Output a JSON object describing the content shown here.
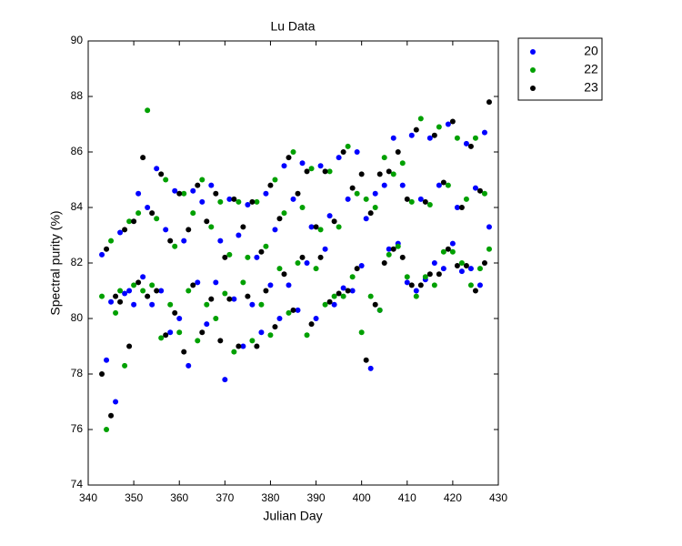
{
  "chart_data": {
    "type": "scatter",
    "title": "Lu Data",
    "x_label": "Julian Day",
    "y_label": "Spectral purity (%)",
    "x": [
      343,
      344,
      345,
      346,
      347,
      348,
      349,
      350,
      351,
      352,
      353,
      354,
      355,
      356,
      357,
      358,
      359,
      360,
      361,
      362,
      363,
      364,
      365,
      366,
      367,
      368,
      369,
      370,
      371,
      372,
      373,
      374,
      375,
      376,
      377,
      378,
      379,
      380,
      381,
      382,
      383,
      384,
      385,
      386,
      387,
      388,
      389,
      390,
      391,
      392,
      393,
      394,
      395,
      396,
      397,
      398,
      399,
      400,
      401,
      402,
      403,
      404,
      405,
      406,
      407,
      408,
      409,
      410,
      411,
      412,
      413,
      414,
      415,
      416,
      417,
      418,
      419,
      420,
      421,
      422,
      423,
      424,
      425,
      426,
      427,
      428
    ],
    "series": [
      {
        "name": "20",
        "color": "#0000ff",
        "values": [
          82.3,
          78.5,
          80.6,
          77.0,
          83.1,
          80.9,
          81.0,
          80.5,
          84.5,
          81.5,
          84.0,
          80.5,
          85.4,
          81.0,
          83.2,
          79.5,
          84.6,
          80.0,
          82.8,
          78.3,
          84.6,
          81.3,
          84.2,
          79.8,
          84.8,
          81.3,
          82.8,
          77.8,
          84.3,
          80.7,
          83.0,
          79.0,
          84.1,
          80.5,
          82.2,
          79.5,
          84.5,
          81.2,
          83.2,
          80.0,
          85.5,
          81.2,
          84.3,
          80.3,
          85.6,
          82.0,
          83.3,
          80.0,
          85.5,
          82.5,
          83.7,
          80.5,
          85.8,
          81.1,
          84.3,
          81.0,
          86.0,
          81.9,
          83.6,
          78.2,
          84.5,
          80.3,
          84.8,
          82.5,
          86.5,
          82.7,
          84.8,
          81.3,
          86.6,
          81.0,
          84.3,
          81.4,
          86.5,
          82.0,
          84.8,
          81.8,
          87.0,
          82.7,
          84.0,
          81.7,
          86.3,
          81.8,
          84.7,
          81.2,
          86.7,
          83.3
        ]
      },
      {
        "name": "22",
        "color": "#00a000",
        "values": [
          80.8,
          76.0,
          82.8,
          80.2,
          81.0,
          78.3,
          83.5,
          81.2,
          83.8,
          81.0,
          87.5,
          81.2,
          83.6,
          79.3,
          85.0,
          80.5,
          82.6,
          79.5,
          84.5,
          81.0,
          83.8,
          79.2,
          85.0,
          80.5,
          83.3,
          80.0,
          84.2,
          80.9,
          82.3,
          78.8,
          84.2,
          81.3,
          82.2,
          79.2,
          84.2,
          80.5,
          82.6,
          79.4,
          85.0,
          81.8,
          83.8,
          80.2,
          86.0,
          82.0,
          84.0,
          79.4,
          85.4,
          81.8,
          83.2,
          80.5,
          85.3,
          80.8,
          83.3,
          80.8,
          86.2,
          81.5,
          84.5,
          79.5,
          84.3,
          80.8,
          84.0,
          80.3,
          85.8,
          82.3,
          85.2,
          82.6,
          85.6,
          81.5,
          84.2,
          80.8,
          87.2,
          81.5,
          84.1,
          81.2,
          86.9,
          82.4,
          84.8,
          82.4,
          86.5,
          82.0,
          84.3,
          81.2,
          86.5,
          81.8,
          84.5,
          82.5
        ]
      },
      {
        "name": "23",
        "color": "#000000",
        "values": [
          78.0,
          82.5,
          76.5,
          80.8,
          80.6,
          83.2,
          79.0,
          83.5,
          81.3,
          85.8,
          80.8,
          83.8,
          81.0,
          85.2,
          79.4,
          82.8,
          80.2,
          84.5,
          78.8,
          83.2,
          81.2,
          84.8,
          79.5,
          83.5,
          80.7,
          84.5,
          79.2,
          82.2,
          80.7,
          84.3,
          79.0,
          83.3,
          80.8,
          84.2,
          79.0,
          82.4,
          81.0,
          84.8,
          79.7,
          83.6,
          81.6,
          85.8,
          80.3,
          84.5,
          82.2,
          85.3,
          79.8,
          83.3,
          82.2,
          85.3,
          80.6,
          83.5,
          80.9,
          86.0,
          81.0,
          84.7,
          81.8,
          85.2,
          78.5,
          83.8,
          80.5,
          85.2,
          82.0,
          85.3,
          82.5,
          86.0,
          82.2,
          84.3,
          81.2,
          86.8,
          81.2,
          84.2,
          81.6,
          86.6,
          81.6,
          84.9,
          82.5,
          87.1,
          81.9,
          84.0,
          81.9,
          86.2,
          81.0,
          84.6,
          82.0,
          87.8
        ]
      }
    ],
    "xlim": [
      340,
      430
    ],
    "xticks": [
      340,
      350,
      360,
      370,
      380,
      390,
      400,
      410,
      420,
      430
    ],
    "ylim": [
      74,
      90
    ],
    "yticks": [
      74,
      76,
      78,
      80,
      82,
      84,
      86,
      88,
      90
    ],
    "grid": false,
    "legend": "outside-upper-right"
  }
}
